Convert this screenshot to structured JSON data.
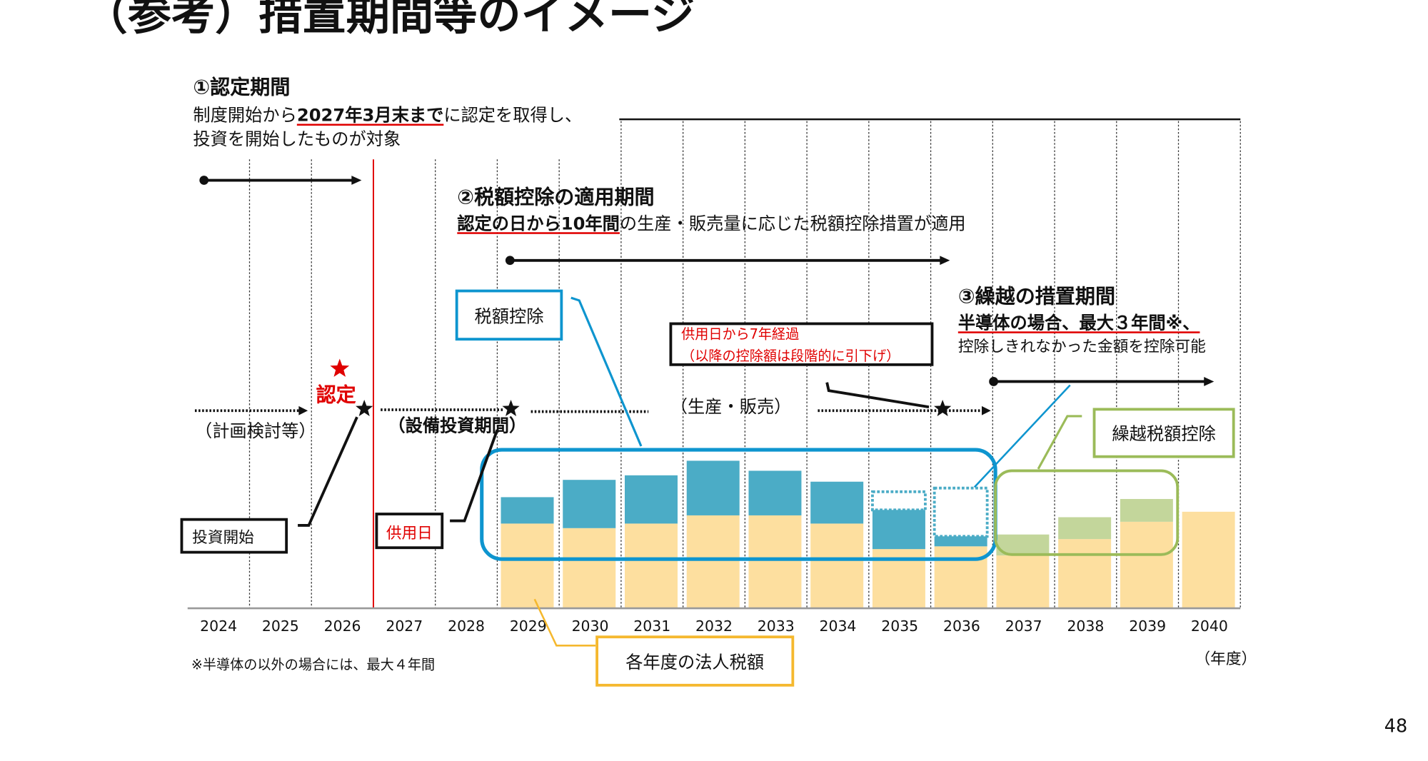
{
  "title": "（参考）措置期間等のイメージ",
  "page_number": "48",
  "section1": {
    "heading": "①認定期間",
    "line1_pre": "制度開始から",
    "line1_emph": "2027年3月末まで",
    "line1_post": "に認定を取得し、",
    "line2": "投資を開始したものが対象"
  },
  "section2": {
    "heading": "②税額控除の適用期間",
    "line_emph": "認定の日から10年間",
    "line_post": "の生産・販売量に応じた税額控除措置が適用"
  },
  "section3": {
    "heading": "③繰越の措置期間",
    "line1": "半導体の場合、最大３年間※、",
    "line2": "控除しきれなかった金額を控除可能"
  },
  "phases": {
    "planning": "（計画検討等）",
    "investment": "（設備投資期間）",
    "production": "（生産・販売）",
    "certification": "認定"
  },
  "callouts": {
    "tax_credit": "税額控除",
    "seven_years_line1": "供用日から7年経過",
    "seven_years_line2": "（以降の控除額は段階的に引下げ）",
    "carryover": "繰越税額控除",
    "investment_start": "投資開始",
    "in_service_date": "供用日",
    "corporate_tax": "各年度の法人税額"
  },
  "footnote": "※半導体の以外の場合には、最大４年間",
  "unit_label": "（年度）",
  "colors": {
    "corporate_tax": "#fddf9f",
    "tax_credit": "#4bacc6",
    "carryover": "#c3d69b",
    "outline_blue": "#0e95cf",
    "outline_green": "#9bbb59",
    "outline_yellow": "#f5b82e",
    "accent_red": "#e00000"
  },
  "chart_data": {
    "type": "bar",
    "stacked": true,
    "categories": [
      "2024",
      "2025",
      "2026",
      "2027",
      "2028",
      "2029",
      "2030",
      "2031",
      "2032",
      "2033",
      "2034",
      "2035",
      "2036",
      "2037",
      "2038",
      "2039",
      "2040"
    ],
    "corporate_tax": [
      0,
      0,
      0,
      0,
      0,
      93,
      88,
      93,
      102,
      102,
      93,
      65,
      68,
      58,
      76,
      95,
      106
    ],
    "tax_credit": [
      0,
      0,
      0,
      0,
      0,
      29,
      53,
      53,
      60,
      49,
      46,
      43,
      11,
      0,
      0,
      0,
      0
    ],
    "tax_credit_unused": [
      0,
      0,
      0,
      0,
      0,
      0,
      0,
      0,
      0,
      0,
      0,
      20,
      53,
      0,
      0,
      0,
      0
    ],
    "carryover_credit": [
      0,
      0,
      0,
      0,
      0,
      0,
      0,
      0,
      0,
      0,
      0,
      0,
      0,
      23,
      24,
      25,
      0
    ],
    "ylim": [
      0,
      170
    ],
    "xlabel": "（年度）",
    "grid": true
  }
}
